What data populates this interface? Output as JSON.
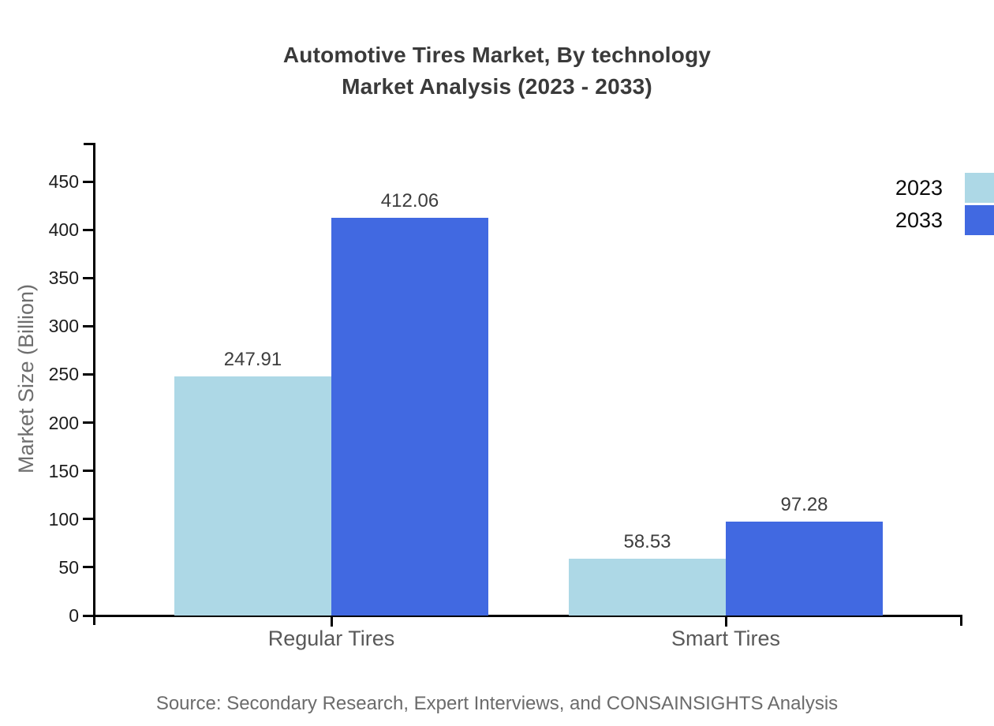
{
  "title": {
    "line1": "Automotive Tires Market, By technology",
    "line2": "Market Analysis (2023 - 2033)"
  },
  "source_text": "Source: Secondary Research, Expert Interviews, and CONSAINSIGHTS Analysis",
  "chart_data": {
    "type": "bar",
    "title": "Automotive Tires Market, By technology Market Analysis (2023 - 2033)",
    "categories": [
      "Regular Tires",
      "Smart Tires"
    ],
    "series": [
      {
        "name": "2023",
        "color": "#ADD8E6",
        "values": [
          247.91,
          58.53
        ]
      },
      {
        "name": "2033",
        "color": "#4169E1",
        "values": [
          412.06,
          97.28
        ]
      }
    ],
    "xlabel": "",
    "ylabel": "Market Size (Billion)",
    "ylim": [
      0,
      491
    ],
    "yticks": [
      0,
      50,
      100,
      150,
      200,
      250,
      300,
      350,
      400,
      450
    ],
    "grid": false,
    "value_labels": true,
    "legend_position": "top-right",
    "axis_color": "#000000",
    "background_color": "#FFFFFF"
  }
}
